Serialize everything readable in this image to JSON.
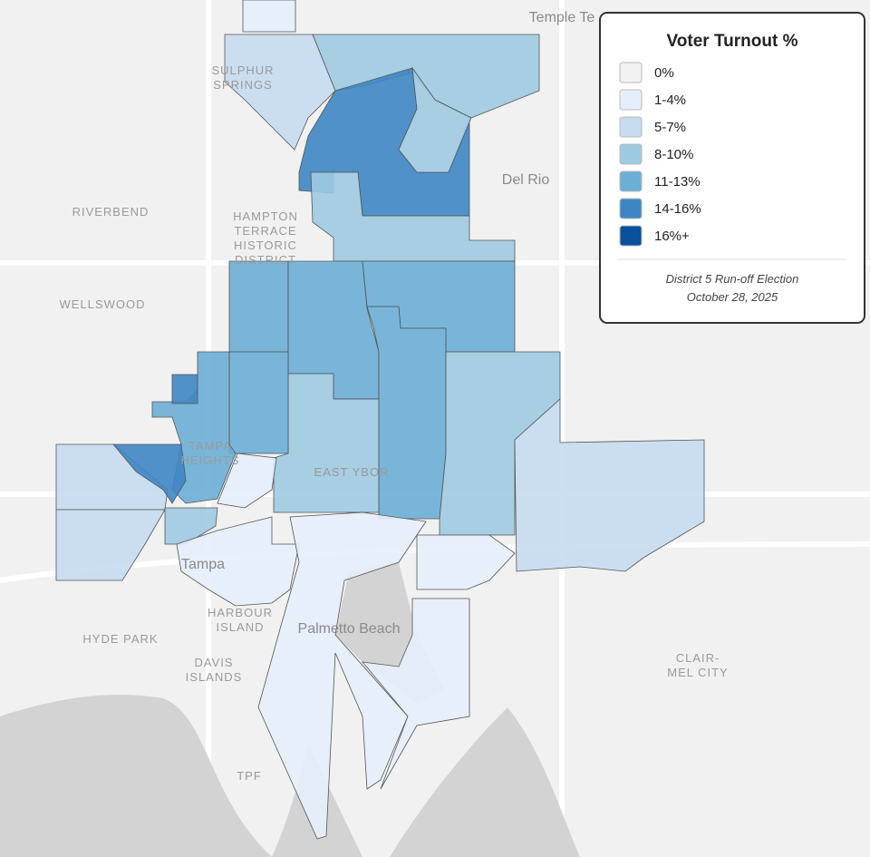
{
  "legend": {
    "title": "Voter Turnout %",
    "items": [
      {
        "label": "0%",
        "color": "#f2f2f2"
      },
      {
        "label": "1-4%",
        "color": "#e6eefb"
      },
      {
        "label": "5-7%",
        "color": "#c6dbef"
      },
      {
        "label": "8-10%",
        "color": "#9ecae1"
      },
      {
        "label": "11-13%",
        "color": "#6baed6"
      },
      {
        "label": "14-16%",
        "color": "#3d86c3"
      },
      {
        "label": "16%+",
        "color": "#08519c"
      }
    ],
    "note": [
      "District 5 Run-off Election",
      "October 28, 2025"
    ]
  },
  "places": [
    {
      "lines": [
        "Temple Te"
      ]
    },
    {
      "lines": [
        "SULPHUR",
        "SPRINGS"
      ]
    },
    {
      "lines": [
        "Del Rio"
      ]
    },
    {
      "lines": [
        "RIVERBEND"
      ]
    },
    {
      "lines": [
        "HAMPTON",
        "TERRACE",
        "HISTORIC",
        "DISTRICT"
      ]
    },
    {
      "lines": [
        "WELLSWOOD"
      ]
    },
    {
      "lines": [
        "TAMPA",
        "HEIGHTS"
      ]
    },
    {
      "lines": [
        "EAST YBOR"
      ]
    },
    {
      "lines": [
        "Tampa"
      ]
    },
    {
      "lines": [
        "HARBOUR",
        "ISLAND"
      ]
    },
    {
      "lines": [
        "Palmetto Beach"
      ]
    },
    {
      "lines": [
        "HYDE PARK"
      ]
    },
    {
      "lines": [
        "DAVIS",
        "ISLANDS"
      ]
    },
    {
      "lines": [
        "CLAIR-",
        "MEL CITY"
      ]
    },
    {
      "lines": [
        "TPF"
      ]
    }
  ]
}
